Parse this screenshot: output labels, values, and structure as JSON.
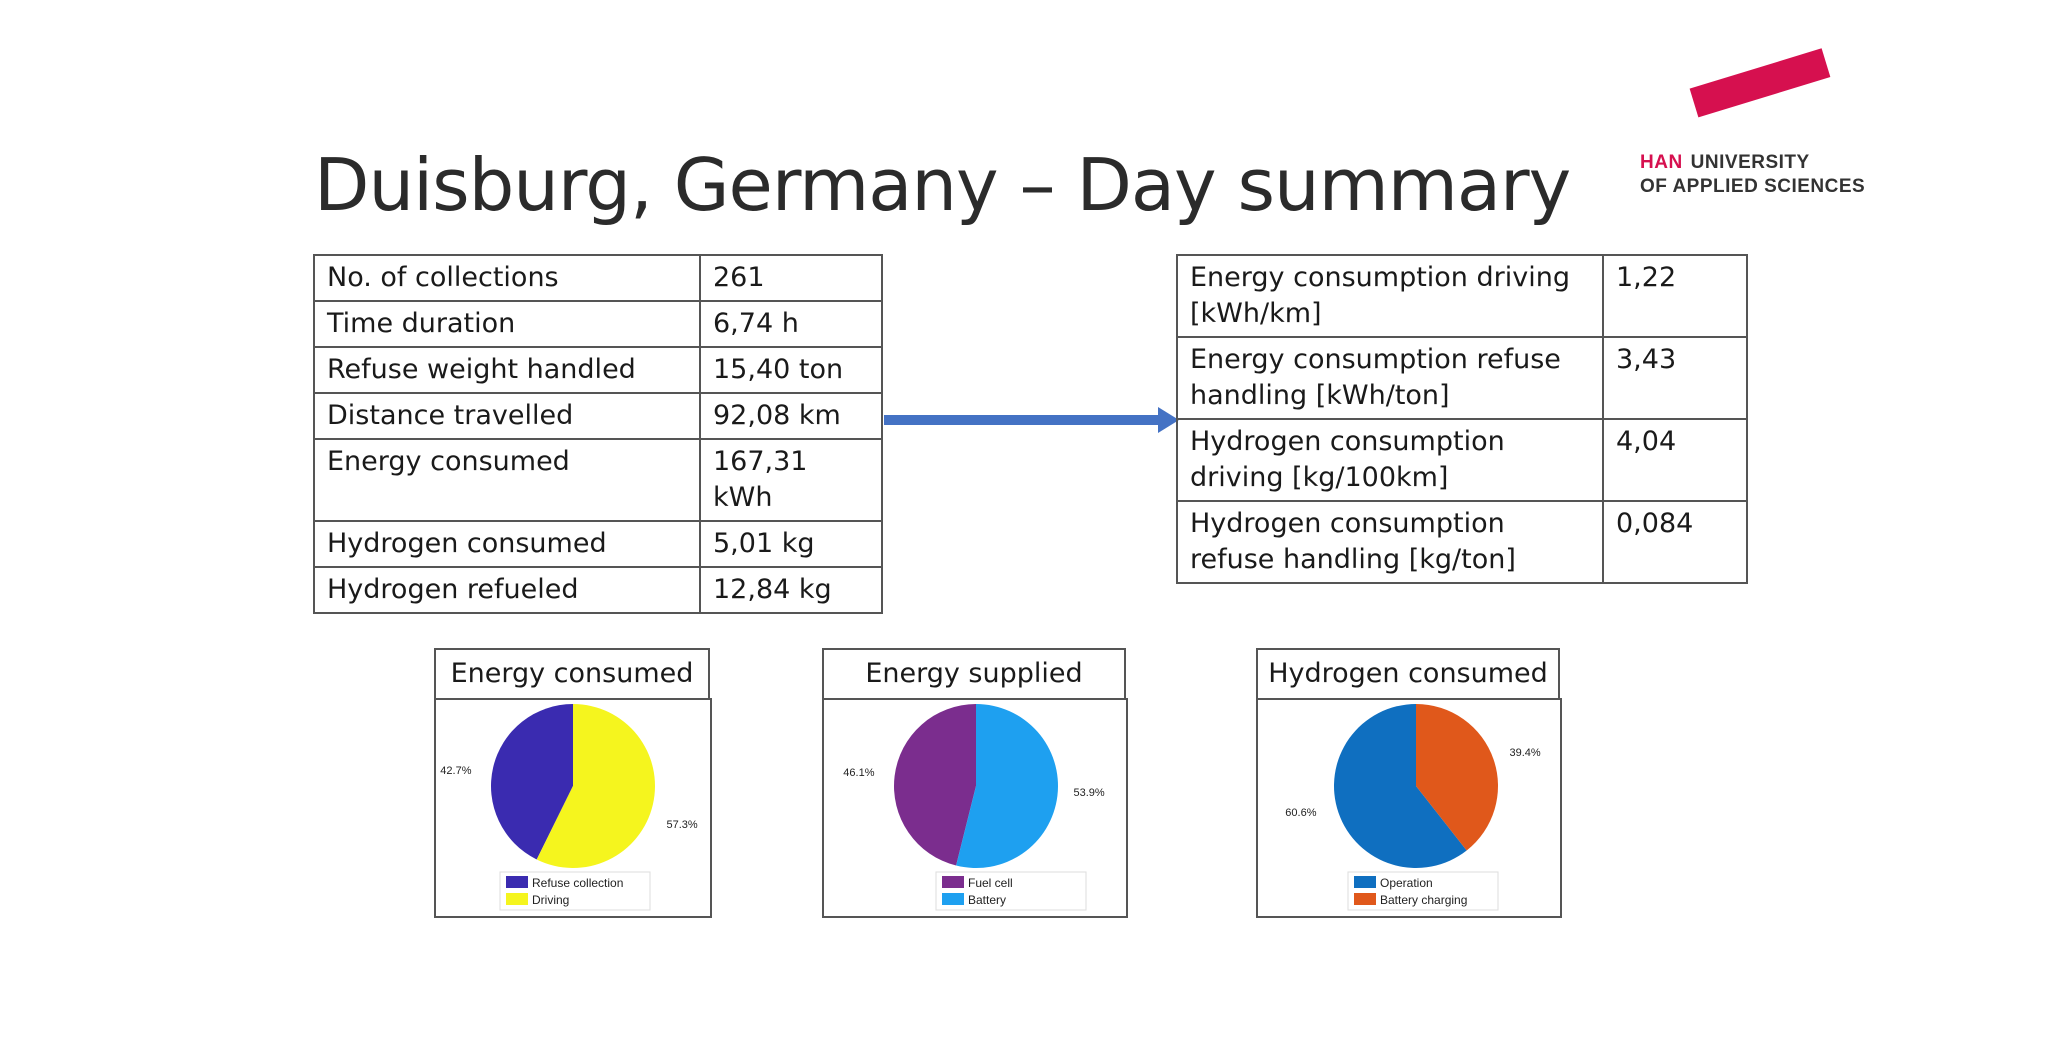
{
  "slide": {
    "title": "Duisburg, Germany – Day summary"
  },
  "logo": {
    "han": "HAN",
    "line1": "UNIVERSITY",
    "line2": "OF APPLIED SCIENCES"
  },
  "left_table": [
    [
      "No. of collections",
      "261"
    ],
    [
      "Time duration",
      "6,74 h"
    ],
    [
      "Refuse weight handled",
      "15,40 ton"
    ],
    [
      "Distance travelled",
      "92,08 km"
    ],
    [
      "Energy consumed",
      "167,31 kWh"
    ],
    [
      "Hydrogen consumed",
      "5,01 kg"
    ],
    [
      "Hydrogen refueled",
      "12,84 kg"
    ]
  ],
  "right_table": [
    [
      "Energy consumption driving [kWh/km]",
      "1,22"
    ],
    [
      "Energy consumption refuse handling [kWh/ton]",
      "3,43"
    ],
    [
      "Hydrogen consumption driving [kg/100km]",
      "4,04"
    ],
    [
      "Hydrogen consumption refuse handling [kg/ton]",
      "0,084"
    ]
  ],
  "colors": {
    "arrow": "#4472c4",
    "han_red": "#d6104f"
  },
  "chart_data": [
    {
      "type": "pie",
      "title": "Energy consumed",
      "labels": [
        "Refuse collection",
        "Driving"
      ],
      "values": [
        42.7,
        57.3
      ],
      "value_labels": [
        "42.7%",
        "57.3%"
      ],
      "colors": [
        "#3a2bb0",
        "#f5f51e"
      ],
      "legend": "bottom"
    },
    {
      "type": "pie",
      "title": "Energy supplied",
      "labels": [
        "Fuel cell",
        "Battery"
      ],
      "values": [
        46.1,
        53.9
      ],
      "value_labels": [
        "46.1%",
        "53.9%"
      ],
      "colors": [
        "#7b2d8e",
        "#1ea0f0"
      ],
      "legend": "bottom"
    },
    {
      "type": "pie",
      "title": "Hydrogen consumed",
      "labels": [
        "Operation",
        "Battery charging"
      ],
      "values": [
        60.6,
        39.4
      ],
      "value_labels": [
        "60.6%",
        "39.4%"
      ],
      "colors": [
        "#0f6fc0",
        "#e0581b"
      ],
      "legend": "bottom"
    }
  ]
}
